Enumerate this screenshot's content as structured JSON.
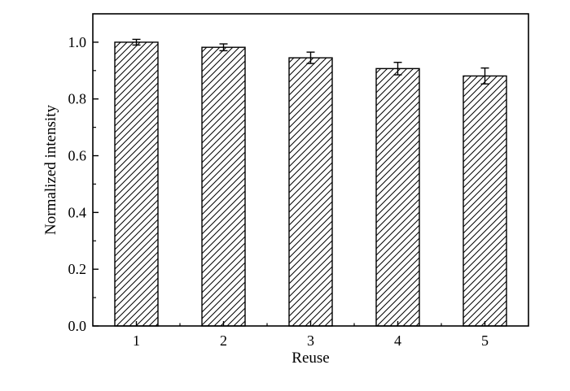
{
  "chart_data": {
    "type": "bar",
    "title": "",
    "xlabel": "Reuse",
    "ylabel": "Normalized intensity",
    "categories": [
      "1",
      "2",
      "3",
      "4",
      "5"
    ],
    "values": [
      1.0,
      0.982,
      0.945,
      0.907,
      0.881
    ],
    "errors": [
      0.01,
      0.012,
      0.02,
      0.022,
      0.028
    ],
    "ylim": [
      0,
      1.1
    ],
    "yticks": [
      "0.0",
      "0.2",
      "0.4",
      "0.6",
      "0.8",
      "1.0"
    ],
    "grid": false,
    "bar_fill": "diagonal-hatch",
    "colors": {
      "bar_stroke": "#000000",
      "hatch": "#000000",
      "background": "#ffffff"
    }
  }
}
